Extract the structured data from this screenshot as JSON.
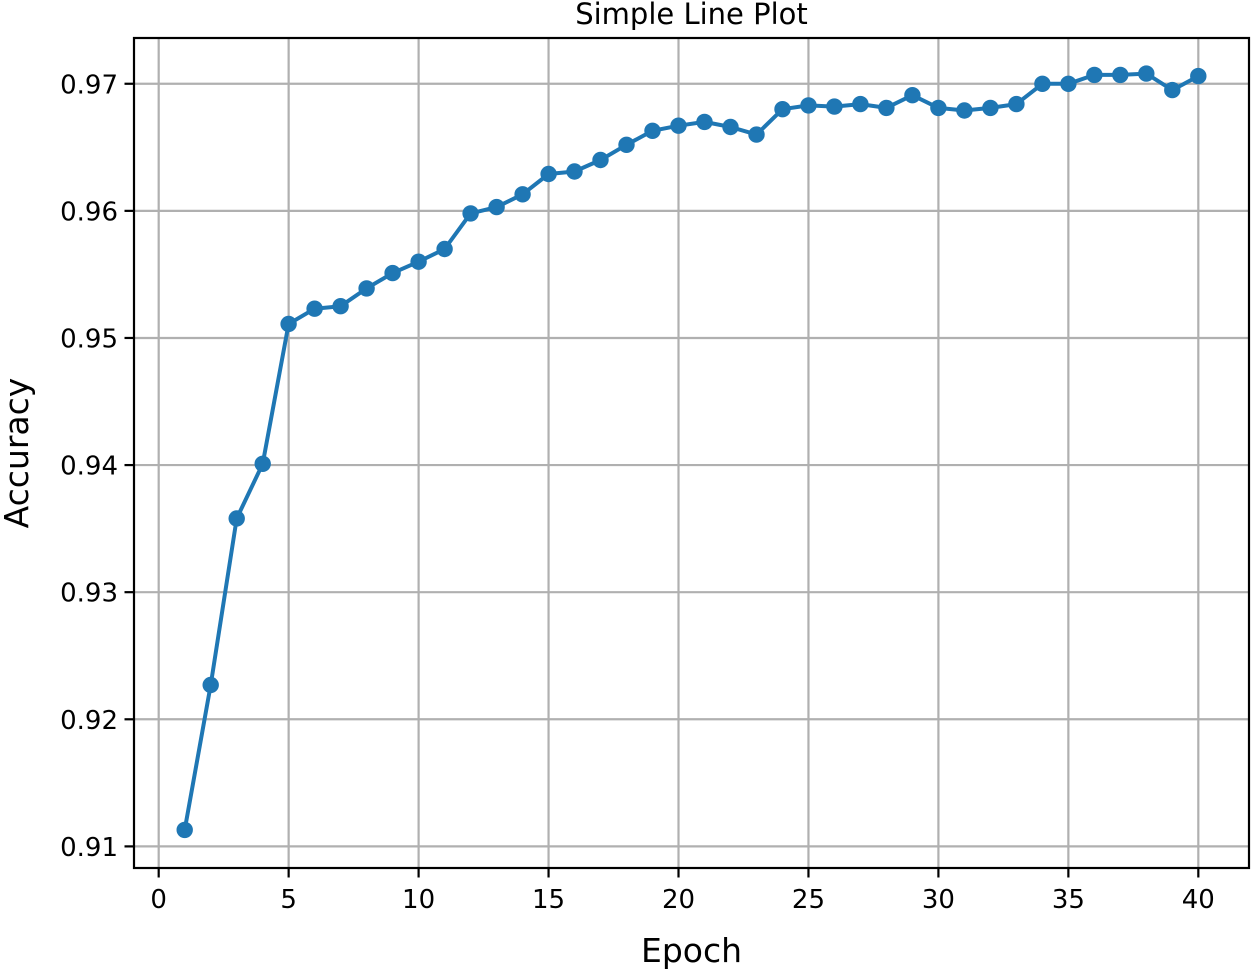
{
  "chart_data": {
    "type": "line",
    "title": "Simple Line Plot",
    "xlabel": "Epoch",
    "ylabel": "Accuracy",
    "x": [
      1,
      2,
      3,
      4,
      5,
      6,
      7,
      8,
      9,
      10,
      11,
      12,
      13,
      14,
      15,
      16,
      17,
      18,
      19,
      20,
      21,
      22,
      23,
      24,
      25,
      26,
      27,
      28,
      29,
      30,
      31,
      32,
      33,
      34,
      35,
      36,
      37,
      38,
      39,
      40
    ],
    "series": [
      {
        "name": "accuracy",
        "values": [
          0.9113,
          0.9227,
          0.9358,
          0.9401,
          0.9511,
          0.9523,
          0.9525,
          0.9539,
          0.9551,
          0.956,
          0.957,
          0.9598,
          0.9603,
          0.9613,
          0.9629,
          0.9631,
          0.964,
          0.9652,
          0.9663,
          0.9667,
          0.967,
          0.9666,
          0.966,
          0.968,
          0.9683,
          0.9682,
          0.9684,
          0.9681,
          0.9691,
          0.9681,
          0.9679,
          0.9681,
          0.9684,
          0.97,
          0.97,
          0.9707,
          0.9707,
          0.9708,
          0.9695,
          0.9706
        ]
      }
    ],
    "xticks": [
      0,
      5,
      10,
      15,
      20,
      25,
      30,
      35,
      40
    ],
    "yticks": [
      0.91,
      0.92,
      0.93,
      0.94,
      0.95,
      0.96,
      0.97
    ],
    "xlim": [
      -0.95,
      41.95
    ],
    "ylim": [
      0.9083,
      0.9736
    ],
    "grid": true,
    "legend": false,
    "marker": "circle",
    "line_color": "#1f77b4",
    "grid_color": "#b0b0b0",
    "spine_color": "#000000",
    "background": "#ffffff"
  }
}
